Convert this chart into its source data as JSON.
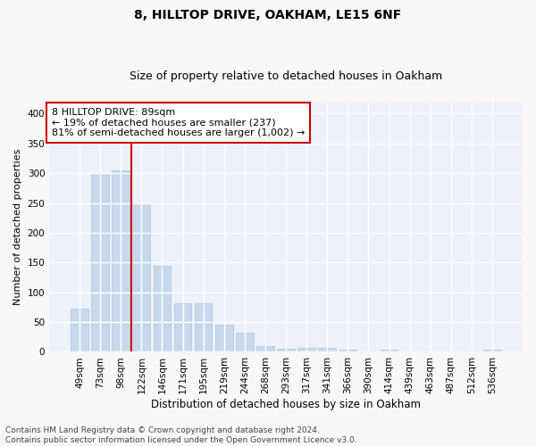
{
  "title": "8, HILLTOP DRIVE, OAKHAM, LE15 6NF",
  "subtitle": "Size of property relative to detached houses in Oakham",
  "xlabel": "Distribution of detached houses by size in Oakham",
  "ylabel": "Number of detached properties",
  "categories": [
    "49sqm",
    "73sqm",
    "98sqm",
    "122sqm",
    "146sqm",
    "171sqm",
    "195sqm",
    "219sqm",
    "244sqm",
    "268sqm",
    "293sqm",
    "317sqm",
    "341sqm",
    "366sqm",
    "390sqm",
    "414sqm",
    "439sqm",
    "463sqm",
    "487sqm",
    "512sqm",
    "536sqm"
  ],
  "values": [
    72,
    300,
    305,
    249,
    145,
    82,
    82,
    45,
    32,
    10,
    5,
    6,
    6,
    3,
    0,
    4,
    0,
    0,
    0,
    0,
    3
  ],
  "bar_color": "#c9d9ed",
  "bar_edgecolor": "#a8c4dc",
  "vline_x": 2.5,
  "vline_color": "#cc0000",
  "annotation_text": "8 HILLTOP DRIVE: 89sqm\n← 19% of detached houses are smaller (237)\n81% of semi-detached houses are larger (1,002) →",
  "annotation_box_facecolor": "#ffffff",
  "annotation_box_edgecolor": "#cc0000",
  "ylim": [
    0,
    420
  ],
  "yticks": [
    0,
    50,
    100,
    150,
    200,
    250,
    300,
    350,
    400
  ],
  "footer_text": "Contains HM Land Registry data © Crown copyright and database right 2024.\nContains public sector information licensed under the Open Government Licence v3.0.",
  "fig_facecolor": "#f8f8f8",
  "ax_facecolor": "#edf1f9",
  "grid_color": "#ffffff",
  "title_fontsize": 10,
  "subtitle_fontsize": 9,
  "xlabel_fontsize": 8.5,
  "ylabel_fontsize": 8,
  "tick_fontsize": 7.5,
  "annotation_fontsize": 8,
  "footer_fontsize": 6.5
}
